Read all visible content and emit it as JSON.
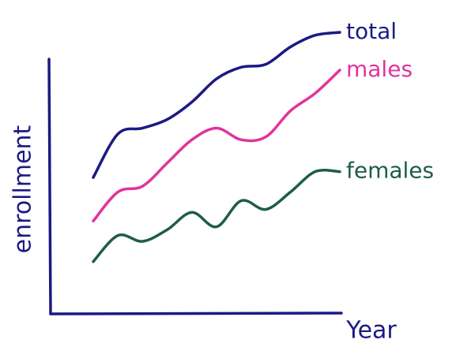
{
  "chart_data": {
    "type": "line",
    "x_label": "Year",
    "y_label": "enrollment",
    "x": [
      0,
      1,
      2,
      3,
      4,
      5,
      6,
      7,
      8,
      9,
      10
    ],
    "xlim": [
      0,
      10
    ],
    "ylim": [
      0,
      100
    ],
    "series": [
      {
        "name": "total",
        "color": "#1c1a82",
        "values": [
          47,
          62,
          64,
          67,
          73,
          81,
          85,
          86,
          92,
          96,
          97
        ]
      },
      {
        "name": "males",
        "color": "#e2339c",
        "values": [
          32,
          42,
          44,
          52,
          60,
          64,
          60,
          61,
          70,
          76,
          84
        ]
      },
      {
        "name": "females",
        "color": "#1f5c4a",
        "values": [
          18,
          27,
          25,
          29,
          35,
          30,
          39,
          36,
          42,
          49,
          49
        ]
      }
    ]
  }
}
